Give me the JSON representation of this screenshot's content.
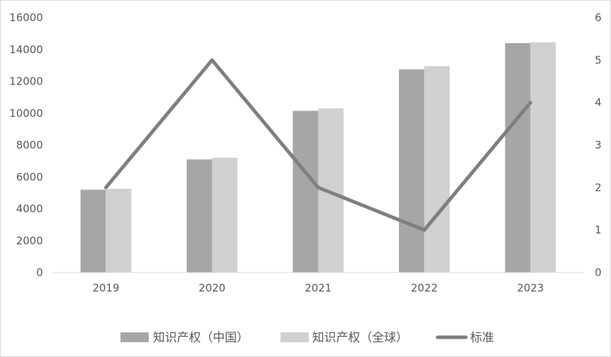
{
  "chart_data": {
    "type": "bar",
    "categories": [
      "2019",
      "2020",
      "2021",
      "2022",
      "2023"
    ],
    "series": [
      {
        "name": "知识产权（中国）",
        "kind": "bar",
        "axis": "left",
        "color": "#a6a6a6",
        "values": [
          5200,
          7100,
          10150,
          12750,
          14400
        ]
      },
      {
        "name": "知识产权（全球）",
        "kind": "bar",
        "axis": "left",
        "color": "#d0d0d0",
        "values": [
          5250,
          7200,
          10300,
          12950,
          14450
        ]
      },
      {
        "name": "标准",
        "kind": "line",
        "axis": "right",
        "color": "#7f7f7f",
        "values": [
          2,
          5,
          2,
          1,
          4
        ]
      }
    ],
    "y_left": {
      "min": 0,
      "max": 16000,
      "step": 2000,
      "ticks": [
        "0",
        "2000",
        "4000",
        "6000",
        "8000",
        "10000",
        "12000",
        "14000",
        "16000"
      ]
    },
    "y_right": {
      "min": 0,
      "max": 6,
      "step": 1,
      "ticks": [
        "0",
        "1",
        "2",
        "3",
        "4",
        "5",
        "6"
      ]
    },
    "grid": false,
    "legend_position": "bottom"
  }
}
